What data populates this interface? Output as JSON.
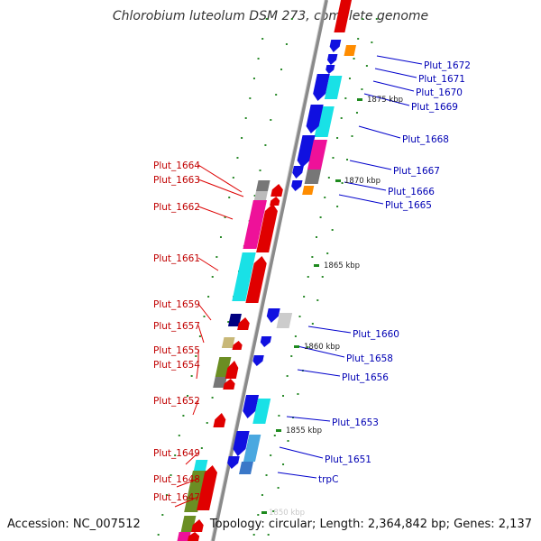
{
  "title": "Chlorobium luteolum DSM 273, complete genome",
  "footer": {
    "accession": "Accession: NC_007512",
    "topology": "Topology: circular; Length: 2,364,842 bp; Genes: 2,137"
  },
  "ticks": [
    "1875 kbp",
    "1870 kbp",
    "1865 kbp",
    "1860 kbp",
    "1855 kbp",
    "1850 kbp"
  ],
  "genes_left": [
    "Plut_1664",
    "Plut_1663",
    "Plut_1662",
    "Plut_1661",
    "Plut_1659",
    "Plut_1657",
    "Plut_1655",
    "Plut_1654",
    "Plut_1652",
    "Plut_1649",
    "Plut_1648",
    "Plut_1647"
  ],
  "genes_right": [
    "Plut_1672",
    "Plut_1671",
    "Plut_1670",
    "Plut_1669",
    "Plut_1668",
    "Plut_1667",
    "Plut_1666",
    "Plut_1665",
    "Plut_1660",
    "Plut_1658",
    "Plut_1656",
    "Plut_1653",
    "Plut_1651",
    "trpC"
  ],
  "colors": {
    "forward_strand": "#e00000",
    "reverse_strand": "#1010e0",
    "cyan": "#19e1e6",
    "magenta": "#ee1199",
    "gray": "#777777",
    "orange": "#ff8c00",
    "olive": "#6b8e23",
    "navy": "#000080",
    "tan": "#c8b878",
    "lightblue": "#4aa8e0",
    "backbone": "#8a8a8a"
  }
}
